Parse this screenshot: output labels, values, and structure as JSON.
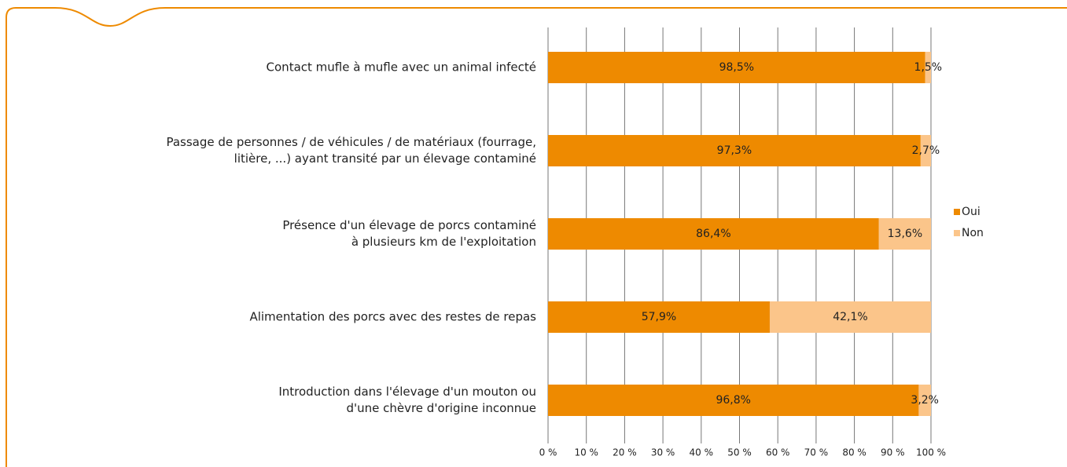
{
  "chart_data": {
    "type": "stacked_barh",
    "categories": [
      [
        "Contact mufle à mufle avec un animal infecté"
      ],
      [
        "Passage de personnes / de véhicules / de matériaux (fourrage,",
        "litière, ...) ayant transité par un élevage contaminé"
      ],
      [
        "Présence d'un élevage de porcs contaminé",
        "à plusieurs km de l'exploitation"
      ],
      [
        "Alimentation des porcs avec des restes de repas"
      ],
      [
        "Introduction dans l'élevage d'un mouton ou",
        "d'une chèvre d'origine inconnue"
      ]
    ],
    "series": [
      {
        "name": "Oui",
        "color": "#ee8a00",
        "values": [
          98.5,
          97.3,
          86.4,
          57.9,
          96.8
        ],
        "value_labels": [
          "98,5%",
          "97,3%",
          "86,4%",
          "57,9%",
          "96,8%"
        ]
      },
      {
        "name": "Non",
        "color": "#fbc58a",
        "values": [
          1.5,
          2.7,
          13.6,
          42.1,
          3.2
        ],
        "value_labels": [
          "1,5%",
          "2,7%",
          "13,6%",
          "42,1%",
          "3,2%"
        ]
      }
    ],
    "xlim": [
      0,
      100
    ],
    "xticks": [
      {
        "value": 0,
        "label": "0 %"
      },
      {
        "value": 10,
        "label": "10 %"
      },
      {
        "value": 20,
        "label": "20 %"
      },
      {
        "value": 30,
        "label": "30 %"
      },
      {
        "value": 40,
        "label": "40 %"
      },
      {
        "value": 50,
        "label": "50 %"
      },
      {
        "value": 60,
        "label": "60 %"
      },
      {
        "value": 70,
        "label": "70 %"
      },
      {
        "value": 80,
        "label": "80 %"
      },
      {
        "value": 90,
        "label": "90 %"
      },
      {
        "value": 100,
        "label": "100 %"
      }
    ],
    "grid": true,
    "legend": "right"
  }
}
